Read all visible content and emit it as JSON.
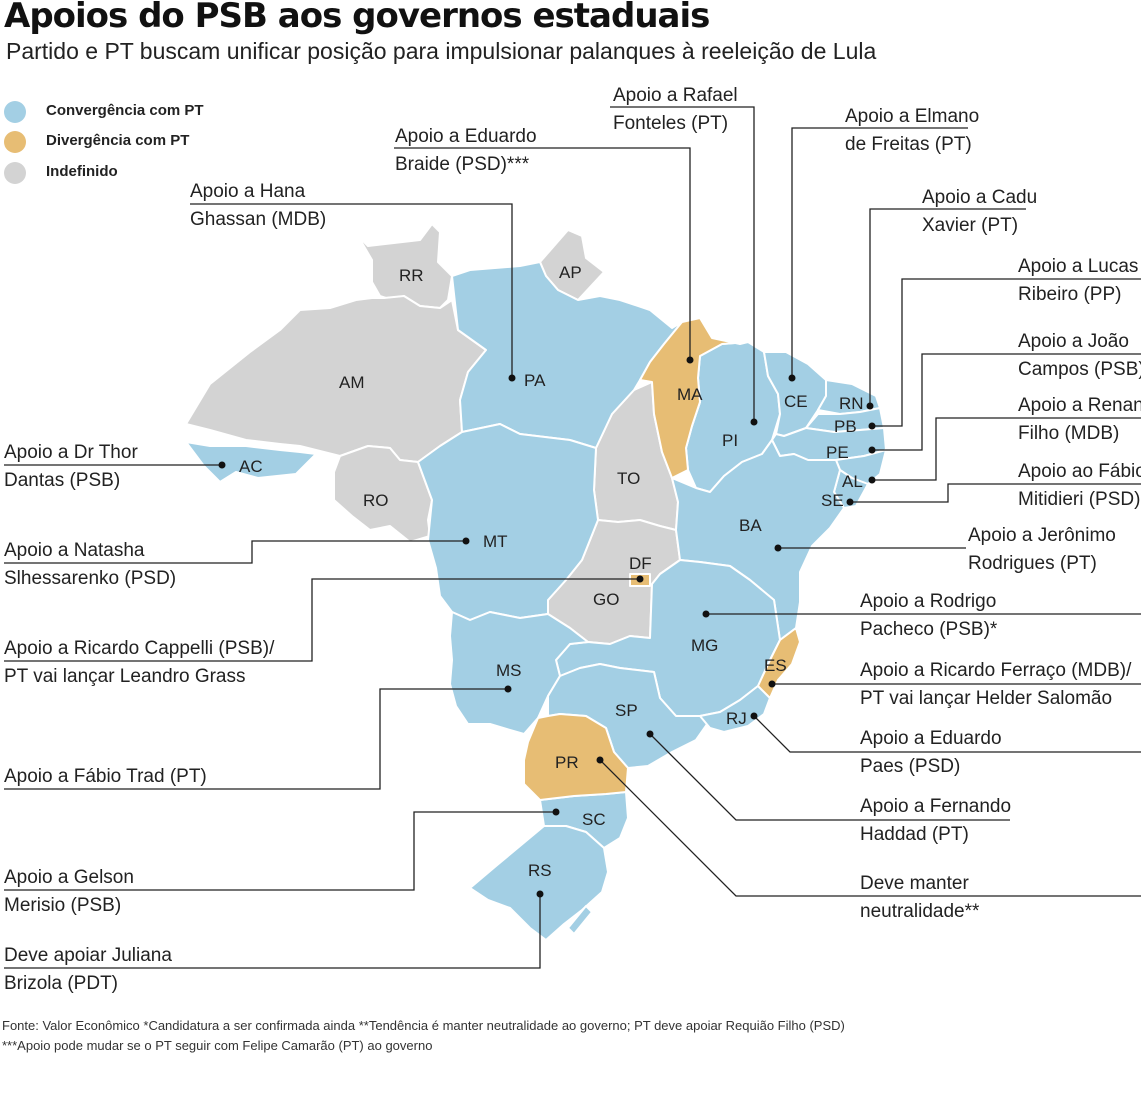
{
  "title": "Apoios do PSB aos governos estaduais",
  "subtitle": "Partido e PT buscam unificar posição para impulsionar palanques à reeleição de Lula",
  "legend": [
    {
      "label": "Convergência com PT",
      "color": "#a3cfe4"
    },
    {
      "label": "Divergência com PT",
      "color": "#e7bd74"
    },
    {
      "label": "Indefinido",
      "color": "#d3d3d3"
    }
  ],
  "states": {
    "RR": "RR",
    "AP": "AP",
    "AM": "AM",
    "PA": "PA",
    "MA": "MA",
    "PI": "PI",
    "CE": "CE",
    "RN": "RN",
    "PB": "PB",
    "PE": "PE",
    "AL": "AL",
    "SE": "SE",
    "BA": "BA",
    "AC": "AC",
    "RO": "RO",
    "TO": "TO",
    "MT": "MT",
    "DF": "DF",
    "GO": "GO",
    "MG": "MG",
    "ES": "ES",
    "MS": "MS",
    "SP": "SP",
    "RJ": "RJ",
    "PR": "PR",
    "SC": "SC",
    "RS": "RS"
  },
  "annotations": {
    "pi": [
      "Apoio a Rafael",
      "Fonteles (PT)"
    ],
    "ce": [
      "Apoio a Elmano",
      "de Freitas (PT)"
    ],
    "ma": [
      "Apoio a Eduardo",
      "Braide (PSD)***"
    ],
    "pa": [
      "Apoio a Hana",
      "Ghassan (MDB)"
    ],
    "rn": [
      "Apoio a Cadu",
      "Xavier (PT)"
    ],
    "pb": [
      "Apoio a Lucas",
      "Ribeiro (PP)"
    ],
    "pe": [
      "Apoio a João",
      "Campos (PSB)"
    ],
    "al": [
      "Apoio a Renan",
      "Filho (MDB)"
    ],
    "se": [
      "Apoio ao Fábio",
      "Mitidieri (PSD)"
    ],
    "ba": [
      "Apoio a Jerônimo",
      "Rodrigues (PT)"
    ],
    "mg": [
      "Apoio a Rodrigo",
      "Pacheco (PSB)*"
    ],
    "es": [
      "Apoio a Ricardo Ferraço (MDB)/",
      "PT vai lançar Helder Salomão"
    ],
    "rj": [
      "Apoio a Eduardo",
      "Paes (PSD)"
    ],
    "sp": [
      "Apoio a Fernando",
      "Haddad (PT)"
    ],
    "pr": [
      "Deve manter",
      "neutralidade**"
    ],
    "ac": [
      "Apoio a Dr Thor",
      "Dantas (PSB)"
    ],
    "mt": [
      "Apoio a Natasha",
      "Slhessarenko (PSD)"
    ],
    "df": [
      "Apoio a Ricardo Cappelli (PSB)/",
      "PT vai lançar Leandro Grass"
    ],
    "ms": [
      "Apoio a Fábio Trad (PT)"
    ],
    "sc": [
      "Apoio a Gelson",
      "Merisio (PSB)"
    ],
    "rs": [
      "Deve apoiar Juliana",
      "Brizola (PDT)"
    ]
  },
  "footer": {
    "line1": "Fonte: Valor Econômico    *Candidatura a ser confirmada ainda    **Tendência é manter neutralidade ao governo; PT deve apoiar Requião Filho (PSD)",
    "line2": "***Apoio pode mudar se o PT seguir com Felipe Camarão (PT) ao governo"
  }
}
